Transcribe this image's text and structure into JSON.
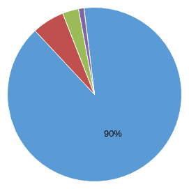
{
  "chart_data": {
    "type": "pie",
    "values": [
      90,
      6,
      3,
      1
    ],
    "value_labels": [
      "90%",
      null,
      null,
      null
    ],
    "colors": [
      "#5B9BD5",
      "#C0504D",
      "#9BBB59",
      "#8064A2"
    ]
  }
}
